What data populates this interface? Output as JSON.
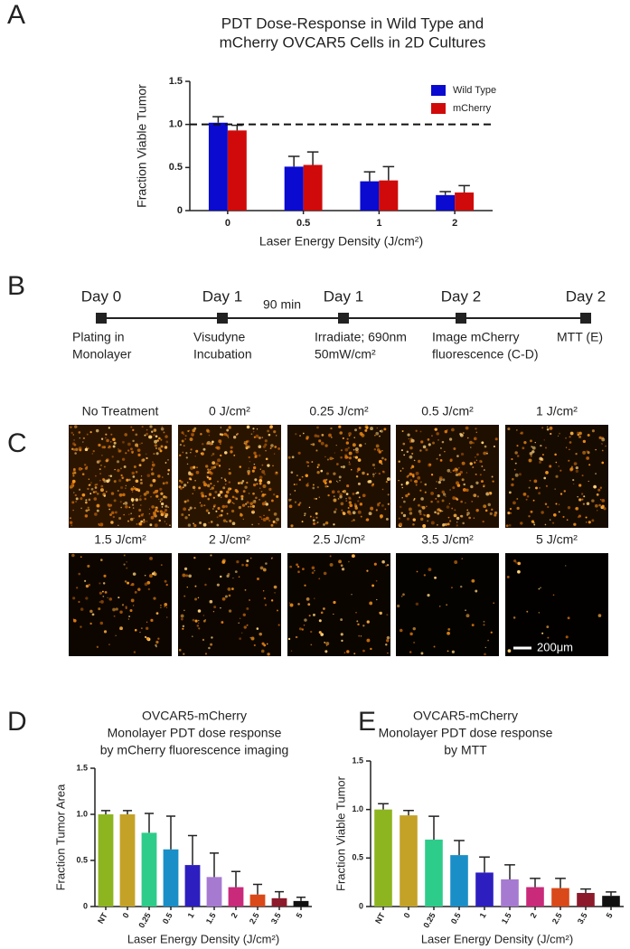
{
  "panel_labels": [
    "A",
    "B",
    "C",
    "D",
    "E"
  ],
  "chart_data": [
    {
      "type": "bar",
      "title": [
        "PDT Dose-Response in Wild Type and",
        "mCherry OVCAR5 Cells in 2D Cultures"
      ],
      "x_label": "Laser Energy Density (J/cm²)",
      "y_label": "Fraction Viable Tumor",
      "categories": [
        "0",
        "0.5",
        "1",
        "2"
      ],
      "series": [
        {
          "name": "Wild Type",
          "color": "#0a0ad0",
          "values": [
            1.02,
            0.51,
            0.34,
            0.18
          ],
          "errors": [
            0.07,
            0.12,
            0.11,
            0.04
          ]
        },
        {
          "name": "mCherry",
          "color": "#d00a0a",
          "values": [
            0.93,
            0.53,
            0.35,
            0.21
          ],
          "errors": [
            0.06,
            0.15,
            0.16,
            0.08
          ]
        }
      ],
      "ylim": [
        0,
        1.5
      ],
      "yticks": [
        0,
        0.5,
        {
          "value": 1,
          "label": "1.0"
        },
        1.5
      ],
      "reference_line": 1,
      "legend": "top-right"
    },
    {
      "type": "bar",
      "title": [
        "OVCAR5-mCherry",
        "Monolayer PDT dose response",
        "by mCherry fluorescence imaging"
      ],
      "x_label": "Laser Energy Density (J/cm²)",
      "y_label": "Fraction Tumor Area",
      "categories": [
        "NT",
        "0",
        "0.25",
        "0.5",
        "1",
        "1.5",
        "2",
        "2.5",
        "3.5",
        "5"
      ],
      "values": [
        1.0,
        1.0,
        0.8,
        0.62,
        0.45,
        0.32,
        0.21,
        0.13,
        0.09,
        0.06
      ],
      "errors": [
        0.04,
        0.04,
        0.21,
        0.36,
        0.32,
        0.26,
        0.17,
        0.11,
        0.07,
        0.04
      ],
      "colors": [
        "#8db51f",
        "#c4a228",
        "#2ecc8a",
        "#1a8fc7",
        "#2d1fbf",
        "#a77ad1",
        "#c92a7a",
        "#d9491a",
        "#8c1a2a",
        "#111111"
      ],
      "ylim": [
        0,
        1.5
      ],
      "yticks": [
        0,
        0.5,
        {
          "value": 1,
          "label": "1.0"
        },
        1.5
      ]
    },
    {
      "type": "bar",
      "title": [
        "OVCAR5-mCherry",
        "Monolayer PDT dose response",
        "by MTT"
      ],
      "x_label": "Laser Energy Density (J/cm²)",
      "y_label": "Fraction Viable Tumor",
      "categories": [
        "NT",
        "0",
        "0.25",
        "0.5",
        "1",
        "1.5",
        "2",
        "2.5",
        "3.5",
        "5"
      ],
      "values": [
        1.0,
        0.94,
        0.69,
        0.53,
        0.35,
        0.28,
        0.2,
        0.19,
        0.14,
        0.11
      ],
      "errors": [
        0.06,
        0.05,
        0.24,
        0.15,
        0.16,
        0.15,
        0.09,
        0.1,
        0.04,
        0.04
      ],
      "colors": [
        "#8db51f",
        "#c4a228",
        "#2ecc8a",
        "#1a8fc7",
        "#2d1fbf",
        "#a77ad1",
        "#c92a7a",
        "#d9491a",
        "#8c1a2a",
        "#111111"
      ],
      "ylim": [
        0,
        1.5
      ],
      "yticks": [
        0,
        0.5,
        {
          "value": 1,
          "label": "1.0"
        },
        1.5
      ]
    }
  ],
  "timeline": {
    "duration": "90 min",
    "steps": [
      {
        "day": "Day 0",
        "label": [
          "Plating in",
          "Monolayer"
        ]
      },
      {
        "day": "Day 1",
        "label": [
          "Visudyne",
          "Incubation"
        ]
      },
      {
        "day": "Day 1",
        "label": [
          "Irradiate; 690nm",
          "50mW/cm²"
        ]
      },
      {
        "day": "Day 2",
        "label": [
          "Image mCherry",
          "fluorescence (C-D)"
        ]
      },
      {
        "day": "Day 2",
        "label": [
          "MTT (E)"
        ]
      }
    ]
  },
  "images": {
    "labels": [
      "No Treatment",
      "0 J/cm²",
      "0.25 J/cm²",
      "0.5 J/cm²",
      "1 J/cm²",
      "1.5 J/cm²",
      "2 J/cm²",
      "2.5 J/cm²",
      "3.5 J/cm²",
      "5 J/cm²"
    ],
    "scale_bar": "200μm"
  }
}
